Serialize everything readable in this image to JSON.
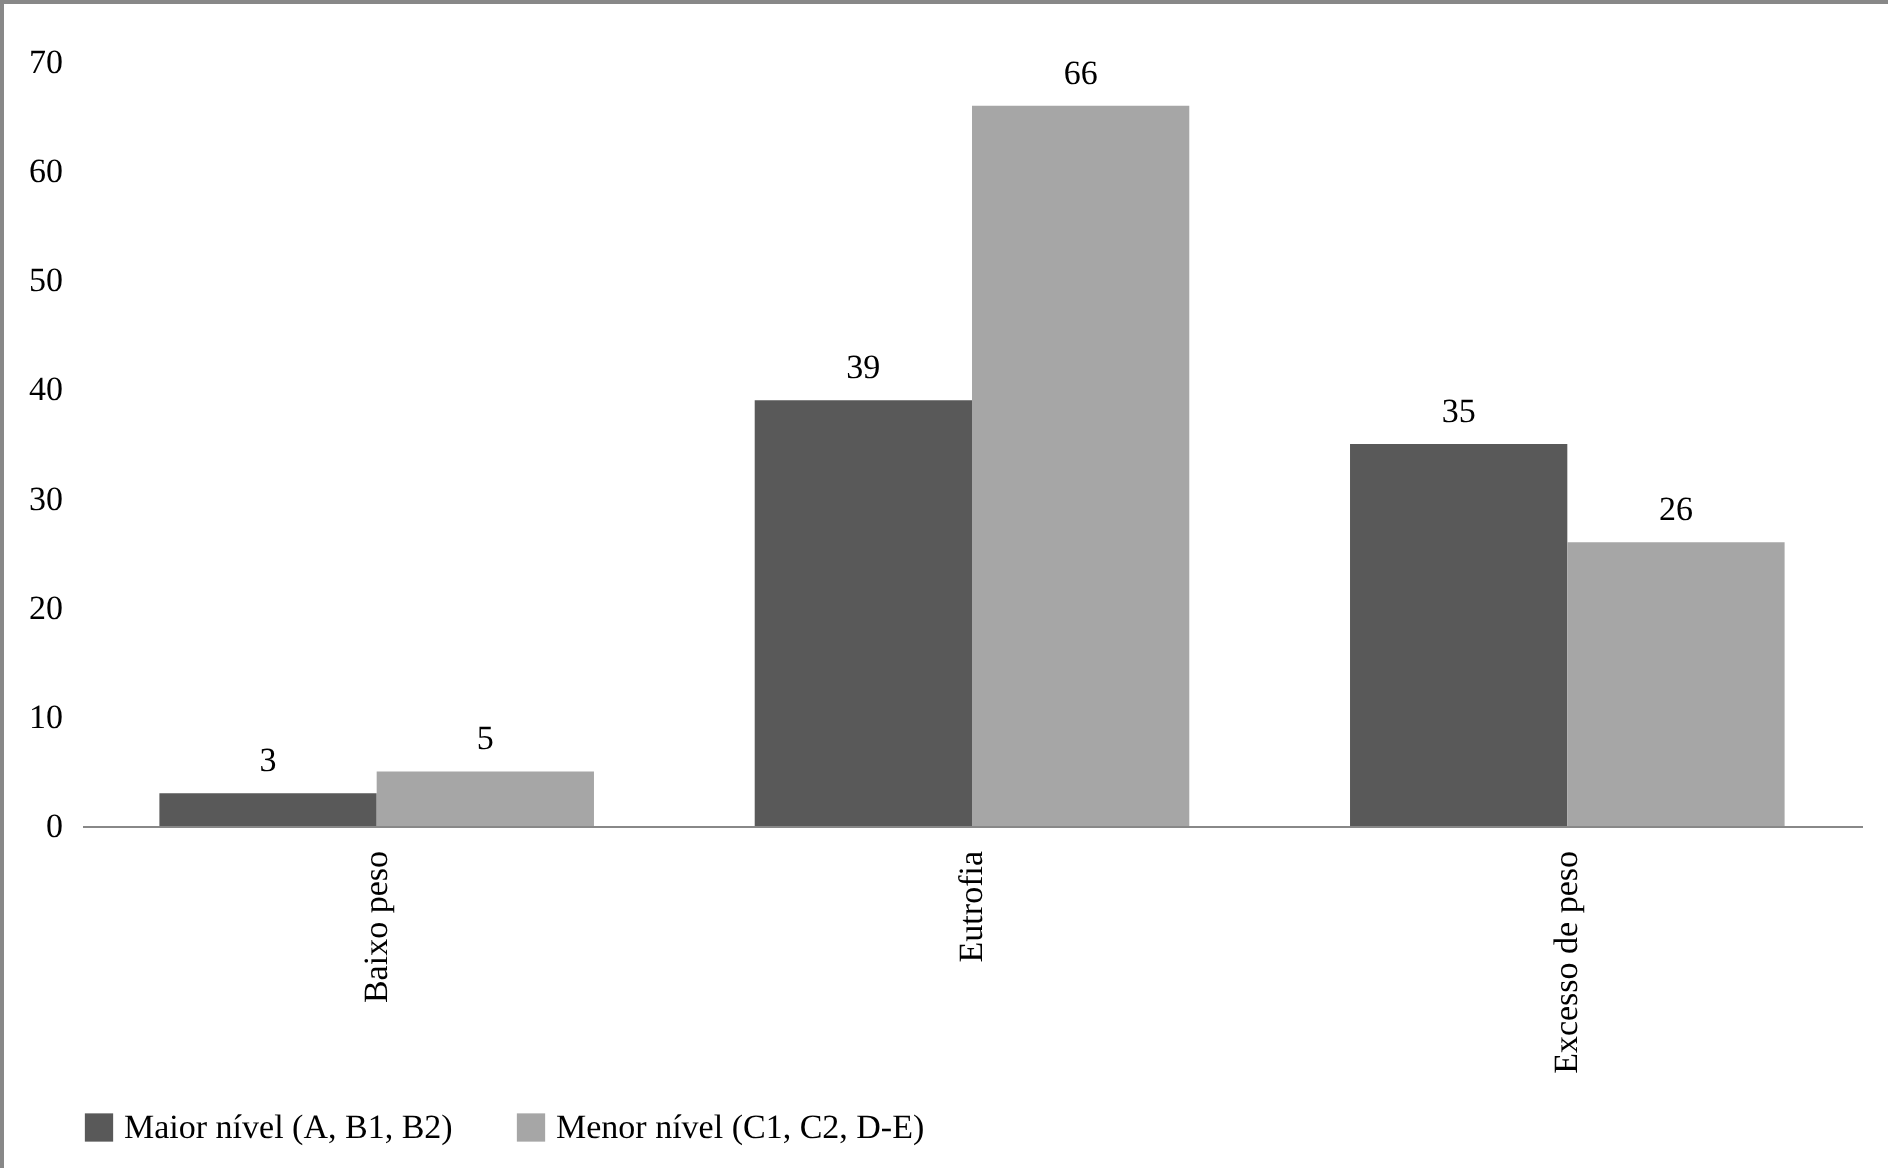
{
  "chart_data": {
    "type": "bar",
    "categories": [
      "Baixo peso",
      "Eutrofia",
      "Excesso de peso"
    ],
    "series": [
      {
        "name": "Maior nível (A, B1, B2)",
        "color": "#595959",
        "values": [
          3,
          39,
          35
        ]
      },
      {
        "name": "Menor nível (C1, C2, D-E)",
        "color": "#a6a6a6",
        "values": [
          5,
          66,
          26
        ]
      }
    ],
    "ylim": [
      0,
      70
    ],
    "yticks": [
      0,
      10,
      20,
      30,
      40,
      50,
      60,
      70
    ],
    "grid": false,
    "legend": "bottom",
    "data_labels": true
  }
}
